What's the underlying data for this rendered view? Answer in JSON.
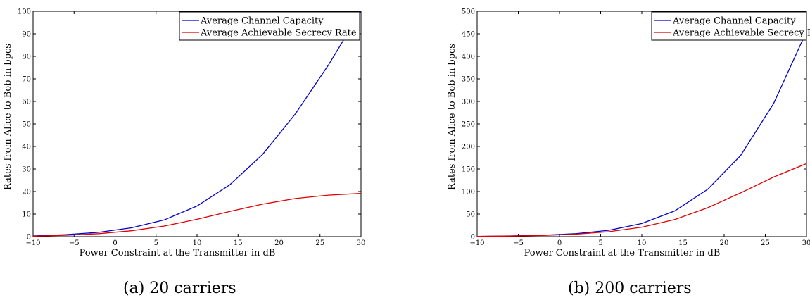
{
  "captions": [
    "(a)  20 carriers",
    "(b)  200 carriers"
  ],
  "chart_data": [
    {
      "type": "line",
      "xlabel": "Power Constraint at the Transmitter in dB",
      "ylabel": "Rates from Alice to Bob in bpcs",
      "xlim": [
        -10,
        30
      ],
      "ylim": [
        0,
        100
      ],
      "xticks": [
        -10,
        -5,
        0,
        5,
        10,
        15,
        20,
        25,
        30
      ],
      "xtick_labels": [
        "−10",
        "−5",
        "0",
        "5",
        "10",
        "15",
        "20",
        "25",
        "30"
      ],
      "yticks": [
        0,
        10,
        20,
        30,
        40,
        50,
        60,
        70,
        80,
        90,
        100
      ],
      "ytick_labels": [
        "0",
        "10",
        "20",
        "30",
        "40",
        "50",
        "60",
        "70",
        "80",
        "90",
        "100"
      ],
      "grid": false,
      "legend_position": "top-right",
      "x": [
        -10,
        -6,
        -2,
        2,
        6,
        10,
        14,
        18,
        22,
        26,
        30
      ],
      "series": [
        {
          "name": "Average Channel Capacity",
          "color": "#0000cc",
          "values": [
            0.3,
            0.9,
            1.9,
            3.9,
            7.4,
            13.6,
            23.0,
            36.5,
            54.5,
            76.0,
            100.0
          ]
        },
        {
          "name": "Average Achievable Secrecy Rate",
          "color": "#e00000",
          "values": [
            0.2,
            0.6,
            1.3,
            2.6,
            4.7,
            7.7,
            11.2,
            14.4,
            16.9,
            18.4,
            19.2
          ]
        }
      ]
    },
    {
      "type": "line",
      "xlabel": "Power Constraint at the Transmitter in dB",
      "ylabel": "Rates from Alice to Bob in bpcs",
      "xlim": [
        -10,
        30
      ],
      "ylim": [
        0,
        500
      ],
      "xticks": [
        -10,
        -5,
        0,
        5,
        10,
        15,
        20,
        25,
        30
      ],
      "xtick_labels": [
        "−10",
        "−5",
        "0",
        "5",
        "10",
        "15",
        "20",
        "25",
        "30"
      ],
      "yticks": [
        0,
        50,
        100,
        150,
        200,
        250,
        300,
        350,
        400,
        450,
        500
      ],
      "ytick_labels": [
        "0",
        "50",
        "100",
        "150",
        "200",
        "250",
        "300",
        "350",
        "400",
        "450",
        "500"
      ],
      "grid": false,
      "legend_position": "top-right",
      "x": [
        -10,
        -6,
        -2,
        2,
        6,
        10,
        14,
        18,
        22,
        26,
        30
      ],
      "series": [
        {
          "name": "Average Channel Capacity",
          "color": "#0000cc",
          "values": [
            0.5,
            1.5,
            3.2,
            6.5,
            14.0,
            29.0,
            57.0,
            105.0,
            180.0,
            295.0,
            455.0
          ]
        },
        {
          "name": "Average Achievable Secrecy Rate",
          "color": "#e00000",
          "values": [
            0.4,
            1.2,
            2.7,
            5.5,
            11.0,
            21.0,
            38.0,
            64.0,
            97.0,
            132.0,
            162.0
          ]
        }
      ]
    }
  ]
}
